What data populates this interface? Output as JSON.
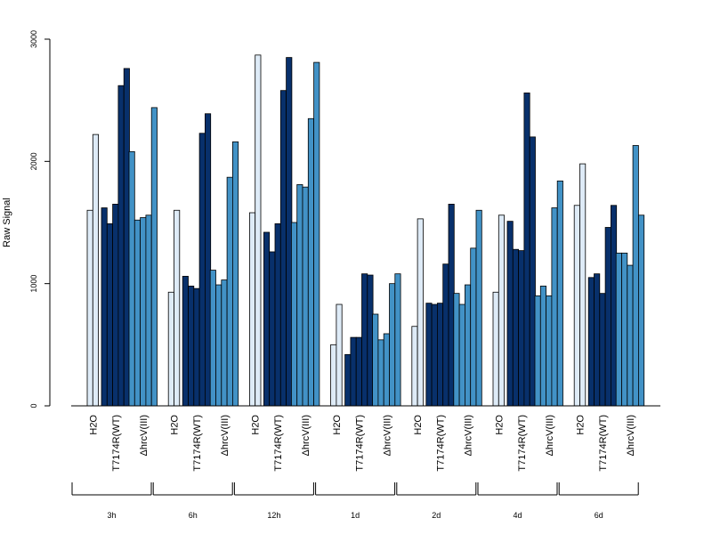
{
  "chart_data": {
    "type": "bar",
    "title": "",
    "ylabel": "Raw Signal",
    "xlabel": "",
    "ylim": [
      0,
      3000
    ],
    "yticks": [
      0,
      1000,
      2000,
      3000
    ],
    "grid": false,
    "condition_labels": [
      "H2O",
      "T7174R(WT)",
      "ΔhrcV(III)"
    ],
    "condition_colors": [
      "#deebf7",
      "#08306b",
      "#4292c6"
    ],
    "groups": [
      {
        "time": "3h",
        "conditions": [
          {
            "condition": "H2O",
            "values": [
              1600,
              2220
            ]
          },
          {
            "condition": "T7174R(WT)",
            "values": [
              1620,
              1490,
              1650,
              2620,
              2760
            ]
          },
          {
            "condition": "ΔhrcV(III)",
            "values": [
              2080,
              1520,
              1540,
              1560,
              2440
            ]
          }
        ]
      },
      {
        "time": "6h",
        "conditions": [
          {
            "condition": "H2O",
            "values": [
              930,
              1600
            ]
          },
          {
            "condition": "T7174R(WT)",
            "values": [
              1060,
              980,
              960,
              2230,
              2390
            ]
          },
          {
            "condition": "ΔhrcV(III)",
            "values": [
              1110,
              990,
              1030,
              1870,
              2160
            ]
          }
        ]
      },
      {
        "time": "12h",
        "conditions": [
          {
            "condition": "H2O",
            "values": [
              1580,
              2870
            ]
          },
          {
            "condition": "T7174R(WT)",
            "values": [
              1420,
              1260,
              1490,
              2580,
              2850
            ]
          },
          {
            "condition": "ΔhrcV(III)",
            "values": [
              1500,
              1810,
              1790,
              2350,
              2810
            ]
          }
        ]
      },
      {
        "time": "1d",
        "conditions": [
          {
            "condition": "H2O",
            "values": [
              500,
              830
            ]
          },
          {
            "condition": "T7174R(WT)",
            "values": [
              420,
              560,
              560,
              1080,
              1070
            ]
          },
          {
            "condition": "ΔhrcV(III)",
            "values": [
              750,
              540,
              590,
              1000,
              1080
            ]
          }
        ]
      },
      {
        "time": "2d",
        "conditions": [
          {
            "condition": "H2O",
            "values": [
              650,
              1530
            ]
          },
          {
            "condition": "T7174R(WT)",
            "values": [
              840,
              830,
              840,
              1160,
              1650
            ]
          },
          {
            "condition": "ΔhrcV(III)",
            "values": [
              920,
              830,
              990,
              1290,
              1600
            ]
          }
        ]
      },
      {
        "time": "4d",
        "conditions": [
          {
            "condition": "H2O",
            "values": [
              930,
              1560
            ]
          },
          {
            "condition": "T7174R(WT)",
            "values": [
              1510,
              1280,
              1270,
              2560,
              2200
            ]
          },
          {
            "condition": "ΔhrcV(III)",
            "values": [
              900,
              980,
              900,
              1620,
              1840
            ]
          }
        ]
      },
      {
        "time": "6d",
        "conditions": [
          {
            "condition": "H2O",
            "values": [
              1640,
              1980
            ]
          },
          {
            "condition": "T7174R(WT)",
            "values": [
              1050,
              1080,
              920,
              1460,
              1640
            ]
          },
          {
            "condition": "ΔhrcV(III)",
            "values": [
              1250,
              1250,
              1150,
              2130,
              1560
            ]
          }
        ]
      }
    ]
  }
}
